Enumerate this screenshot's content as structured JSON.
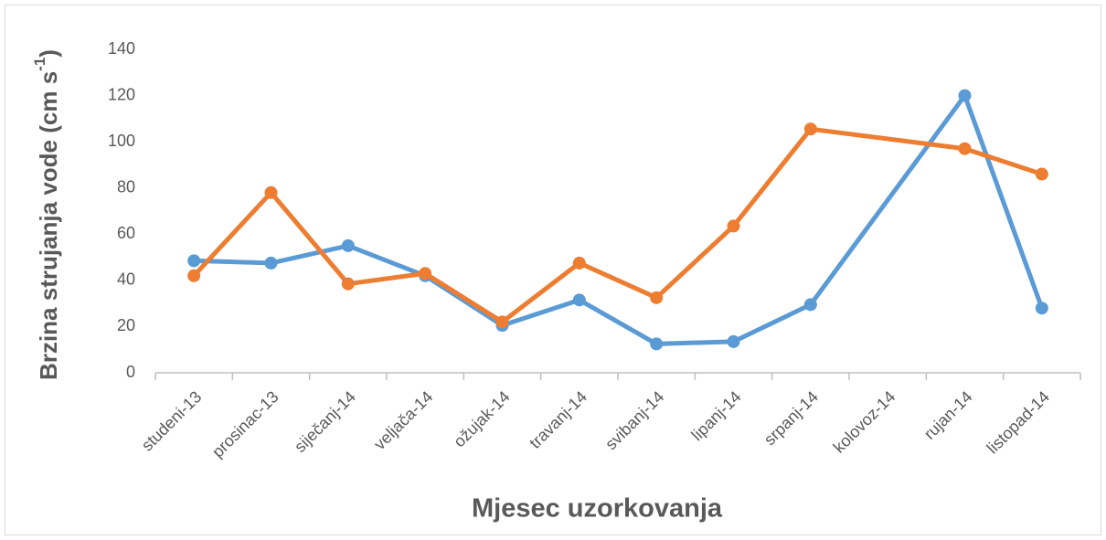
{
  "chart_data": {
    "type": "line",
    "xlabel": "Mjesec uzorkovanja",
    "ylabel_parts": [
      "Brzina strujanja vode (cm s",
      "-1",
      ")"
    ],
    "categories": [
      "studeni-13",
      "prosinac-13",
      "siječanj-14",
      "veljača-14",
      "ožujak-14",
      "travanj-14",
      "svibanj-14",
      "lipanj-14",
      "srpanj-14",
      "kolovoz-14",
      "rujan-14",
      "listopad-14"
    ],
    "series": [
      {
        "color": "#5b9bd5",
        "values": [
          48.5,
          47.5,
          55,
          42,
          20.5,
          31.5,
          12.5,
          13.5,
          29.5,
          null,
          120,
          28
        ]
      },
      {
        "color": "#ed7d31",
        "values": [
          42,
          78,
          38.5,
          43,
          22,
          47.5,
          32.5,
          63.5,
          105.5,
          null,
          97,
          86
        ]
      }
    ],
    "ylim": [
      0,
      140
    ],
    "yticks": [
      0,
      20,
      40,
      60,
      80,
      100,
      120,
      140
    ],
    "grid": false,
    "connect_gaps": true
  }
}
